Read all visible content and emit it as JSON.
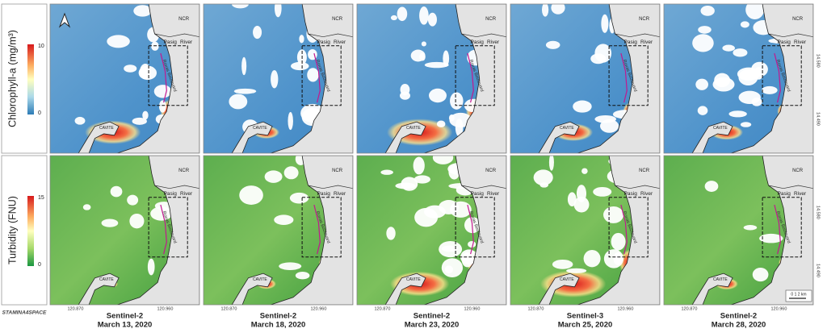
{
  "legends": [
    {
      "label": "Chlorophyll-a (mg/m³)",
      "max": 10,
      "min": 0
    },
    {
      "label": "Turbidity (FNU)",
      "max": 15,
      "min": 0
    }
  ],
  "panels": [
    {
      "sensor": "Sentinel-2",
      "date": "March 13, 2020"
    },
    {
      "sensor": "Sentinel-2",
      "date": "March 18, 2020"
    },
    {
      "sensor": "Sentinel-2",
      "date": "March 23, 2020"
    },
    {
      "sensor": "Sentinel-3",
      "date": "March 25, 2020"
    },
    {
      "sensor": "Sentinel-2",
      "date": "March 28, 2020"
    }
  ],
  "map_labels": {
    "region": "NCR",
    "river_1": "Pasig",
    "river_2": "River",
    "boulevard": "Roxas Boulevard",
    "province": "CAVITE"
  },
  "x_ticks": [
    "120.870",
    "120.960"
  ],
  "y_ticks": [
    "14.580",
    "14.490"
  ],
  "scale_bar": "0  1  2 km",
  "logo": "STAMINA4SPACE"
}
